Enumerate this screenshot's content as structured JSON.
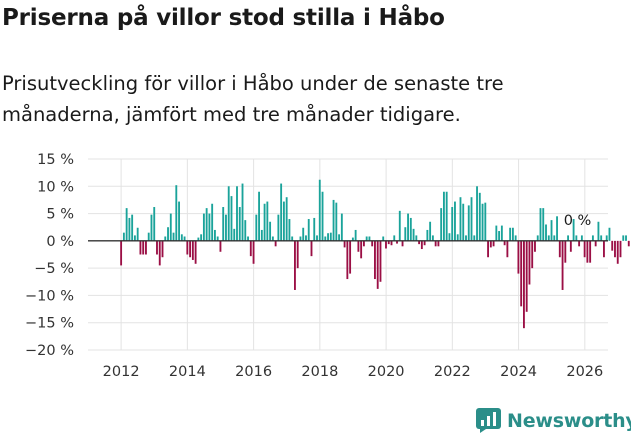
{
  "title": "Priserna på villor stod stilla i Håbo",
  "subtitle": "Prisutveckling för villor i Håbo under de senaste tre månaderna, jämfört med tre månader tidigare.",
  "brand": {
    "name": "Newsworthy",
    "color": "#2b8e89"
  },
  "colors": {
    "positive": "#1aa39a",
    "negative": "#9b0f45",
    "grid": "#e3e3e3",
    "zero_line": "#333333"
  },
  "chart_data": {
    "type": "bar",
    "x_start": 2012.0,
    "x_step_years": 0.0833,
    "ylim": [
      -20,
      15
    ],
    "xlim": [
      2011.0,
      2026.7
    ],
    "yticks": [
      15,
      10,
      5,
      0,
      -5,
      -10,
      -15,
      -20
    ],
    "ytick_labels": [
      "15 %",
      "10 %",
      "5 %",
      "0 %",
      "−5 %",
      "−10 %",
      "−15 %",
      "−20 %"
    ],
    "xticks": [
      2012,
      2014,
      2016,
      2018,
      2020,
      2022,
      2024,
      2026
    ],
    "xtick_labels": [
      "2012",
      "2014",
      "2016",
      "2018",
      "2020",
      "2022",
      "2024",
      "2026"
    ],
    "annotation": {
      "label": "0 %",
      "x": 2025.9,
      "y": 0
    },
    "values": [
      -4.5,
      1.5,
      6.0,
      4.2,
      4.8,
      1.0,
      2.4,
      -2.5,
      -2.5,
      -2.5,
      1.5,
      4.8,
      6.2,
      -2.5,
      -4.5,
      -3.0,
      0.8,
      2.5,
      5.0,
      1.5,
      10.2,
      7.2,
      1.2,
      0.8,
      -2.5,
      -3.0,
      -3.5,
      -4.2,
      0.6,
      1.2,
      5.0,
      6.0,
      5.0,
      6.8,
      2.0,
      0.8,
      -2.0,
      6.2,
      4.8,
      10.0,
      8.2,
      2.2,
      10.0,
      6.2,
      10.5,
      3.8,
      0.8,
      -2.8,
      -4.2,
      4.8,
      9.0,
      2.0,
      6.8,
      7.2,
      3.5,
      0.8,
      -1.0,
      4.8,
      10.5,
      7.2,
      8.0,
      4.0,
      0.8,
      -9.0,
      -5.0,
      0.8,
      2.4,
      1.0,
      4.0,
      -2.8,
      4.2,
      1.0,
      11.2,
      9.0,
      0.8,
      1.4,
      1.5,
      7.5,
      7.0,
      1.2,
      5.0,
      -1.2,
      -7.0,
      -6.0,
      0.6,
      2.0,
      -2.0,
      -3.2,
      -1.0,
      0.8,
      0.8,
      -1.0,
      -7.0,
      -8.8,
      -7.5,
      0.8,
      -1.4,
      -0.6,
      -0.8,
      1.0,
      -0.5,
      5.5,
      -1.0,
      2.5,
      5.0,
      4.2,
      2.2,
      1.0,
      -0.6,
      -1.5,
      -0.8,
      2.0,
      3.5,
      1.0,
      -1.0,
      -1.0,
      6.0,
      9.0,
      9.0,
      1.4,
      6.2,
      7.2,
      1.2,
      8.0,
      6.8,
      1.0,
      6.5,
      8.0,
      1.0,
      10.0,
      8.8,
      6.8,
      7.0,
      -3.0,
      -1.2,
      -1.0,
      2.8,
      1.8,
      2.8,
      -0.8,
      -3.0,
      2.4,
      2.4,
      1.0,
      -6.0,
      -12.0,
      -16.0,
      -13.0,
      -8.0,
      -5.0,
      -2.0,
      1.0,
      6.0,
      6.0,
      3.0,
      1.0,
      3.8,
      1.0,
      4.5,
      -3.0,
      -9.0,
      -4.0,
      1.0,
      -2.0,
      4.0,
      1.0,
      -1.0,
      1.0,
      -3.0,
      -4.0,
      -4.0,
      1.0,
      -1.0,
      3.5,
      1.0,
      -3.0,
      1.0,
      2.4,
      -1.8,
      -3.0,
      -4.2,
      -3.0,
      1.0,
      1.0,
      -1.0,
      0.0
    ]
  }
}
